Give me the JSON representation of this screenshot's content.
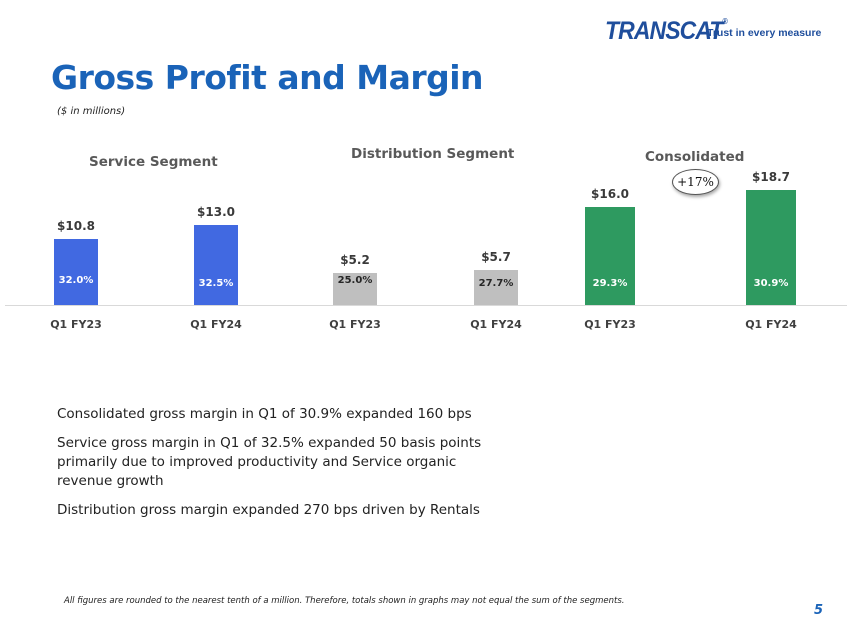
{
  "logo": {
    "word": "TRANSCAT",
    "registered": "®",
    "tagline": "Trust in every measure"
  },
  "title": "Gross Profit and Margin",
  "subtitle": "($ in millions)",
  "segments": {
    "service": "Service Segment",
    "distribution": "Distribution Segment",
    "consolidated": "Consolidated"
  },
  "growth_badge": "+17%",
  "colors": {
    "service": "#4169e1",
    "distribution": "#bfbfbf",
    "consolidated": "#2e9a60",
    "title": "#1a63b8"
  },
  "chart_data": {
    "type": "bar",
    "title": "Gross Profit and Margin",
    "unit": "$ in millions",
    "ylim": [
      0,
      20
    ],
    "groups": [
      {
        "segment": "Service Segment",
        "color": "#4169e1",
        "pct_color": "#ffffff",
        "bars": [
          {
            "category": "Q1 FY23",
            "value": 10.8,
            "value_label": "$10.8",
            "margin_label": "32.0%"
          },
          {
            "category": "Q1 FY24",
            "value": 13.0,
            "value_label": "$13.0",
            "margin_label": "32.5%"
          }
        ]
      },
      {
        "segment": "Distribution Segment",
        "color": "#bfbfbf",
        "pct_color": "#262626",
        "bars": [
          {
            "category": "Q1 FY23",
            "value": 5.2,
            "value_label": "$5.2",
            "margin_label": "25.0%"
          },
          {
            "category": "Q1 FY24",
            "value": 5.7,
            "value_label": "$5.7",
            "margin_label": "27.7%"
          }
        ]
      },
      {
        "segment": "Consolidated",
        "color": "#2e9a60",
        "pct_color": "#ffffff",
        "bars": [
          {
            "category": "Q1 FY23",
            "value": 16.0,
            "value_label": "$16.0",
            "margin_label": "29.3%"
          },
          {
            "category": "Q1 FY24",
            "value": 18.7,
            "value_label": "$18.7",
            "margin_label": "30.9%"
          }
        ]
      }
    ]
  },
  "bullets": [
    "Consolidated gross margin in Q1 of 30.9% expanded 160 bps",
    "Service gross margin in Q1 of 32.5% expanded 50 basis points primarily due to improved productivity and Service organic revenue growth",
    "Distribution gross margin expanded 270 bps driven by Rentals"
  ],
  "footnote": "All figures are rounded to the nearest tenth of a million. Therefore, totals shown in graphs may not equal the sum of the segments.",
  "page_number": "5"
}
